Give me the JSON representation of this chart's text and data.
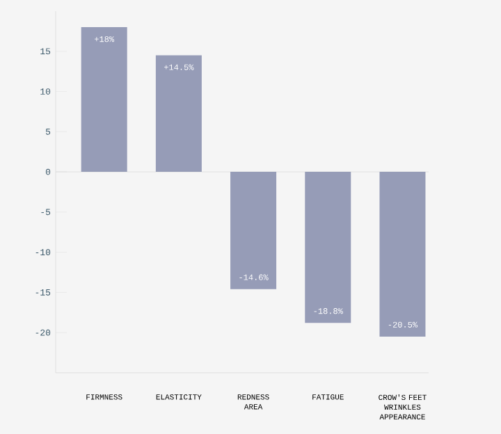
{
  "chart_data": {
    "type": "bar",
    "categories": [
      "FIRMNESS",
      "ELASTICITY",
      "REDNESS AREA",
      "FATIGUE",
      "CROW'S FEET WRINKLES APPEARANCE"
    ],
    "values": [
      18,
      14.5,
      -14.6,
      -18.8,
      -20.5
    ],
    "value_labels": [
      "+18%",
      "+14.5%",
      "-14.6%",
      "-18.8%",
      "-20.5%"
    ],
    "color": "#969cb7",
    "yticks": [
      -20,
      -15,
      -10,
      -5,
      0,
      5,
      10,
      15
    ],
    "ylim": [
      -25,
      20
    ]
  }
}
